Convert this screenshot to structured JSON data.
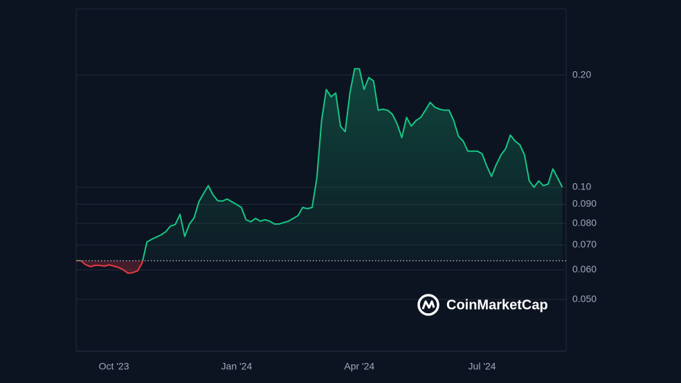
{
  "chart_data": {
    "type": "line",
    "categories": [
      null,
      null,
      null,
      null,
      null,
      null,
      null,
      null,
      "Oct '23",
      null,
      null,
      null,
      null,
      null,
      null,
      null,
      null,
      null,
      null,
      null,
      null,
      null,
      null,
      null,
      null,
      null,
      null,
      null,
      null,
      null,
      null,
      null,
      null,
      null,
      "Jan '24",
      null,
      null,
      null,
      null,
      null,
      null,
      null,
      null,
      null,
      null,
      null,
      null,
      null,
      null,
      null,
      null,
      null,
      null,
      null,
      null,
      null,
      null,
      null,
      null,
      null,
      "Apr '24",
      null,
      null,
      null,
      null,
      null,
      null,
      null,
      null,
      null,
      null,
      null,
      null,
      null,
      null,
      null,
      null,
      null,
      null,
      null,
      null,
      null,
      null,
      null,
      null,
      null,
      "Jul '24",
      null,
      null,
      null,
      null,
      null,
      null,
      null,
      null,
      null,
      null,
      null,
      null,
      null,
      null,
      null,
      null,
      null
    ],
    "values": [
      0.0635,
      0.0635,
      0.062,
      0.0612,
      0.0617,
      0.0617,
      0.0614,
      0.0619,
      0.0614,
      0.0609,
      0.06,
      0.0588,
      0.059,
      0.0596,
      0.0627,
      0.0713,
      0.0725,
      0.0735,
      0.0745,
      0.076,
      0.0787,
      0.0794,
      0.0846,
      0.0738,
      0.0797,
      0.0828,
      0.0914,
      0.0962,
      0.101,
      0.0954,
      0.092,
      0.0918,
      0.093,
      0.0914,
      0.0899,
      0.0883,
      0.0818,
      0.0808,
      0.0825,
      0.0811,
      0.0818,
      0.0811,
      0.0797,
      0.0797,
      0.0804,
      0.0811,
      0.0825,
      0.0839,
      0.0883,
      0.0876,
      0.0883,
      0.106,
      0.151,
      0.183,
      0.175,
      0.179,
      0.146,
      0.141,
      0.179,
      0.208,
      0.208,
      0.183,
      0.197,
      0.193,
      0.161,
      0.162,
      0.161,
      0.157,
      0.148,
      0.136,
      0.154,
      0.146,
      0.151,
      0.154,
      0.161,
      0.169,
      0.164,
      0.162,
      0.161,
      0.161,
      0.151,
      0.137,
      0.133,
      0.125,
      0.125,
      0.125,
      0.123,
      0.114,
      0.107,
      0.115,
      0.122,
      0.127,
      0.138,
      0.133,
      0.13,
      0.122,
      0.104,
      0.1,
      0.104,
      0.101,
      0.102,
      0.112,
      0.106,
      0.1
    ],
    "color": "#16c784",
    "down_color": "#ea3943",
    "log_scale": true,
    "grid": true,
    "ylim": [
      0.0363,
      0.301
    ],
    "yticks": [
      {
        "value": 0.05,
        "label": "0.050"
      },
      {
        "value": 0.06,
        "label": "0.060"
      },
      {
        "value": 0.07,
        "label": "0.070"
      },
      {
        "value": 0.08,
        "label": "0.080"
      },
      {
        "value": 0.09,
        "label": "0.090"
      },
      {
        "value": 0.1,
        "label": "0.10"
      },
      {
        "value": 0.2,
        "label": "0.20"
      }
    ],
    "watermark": "CoinMarketCap"
  }
}
